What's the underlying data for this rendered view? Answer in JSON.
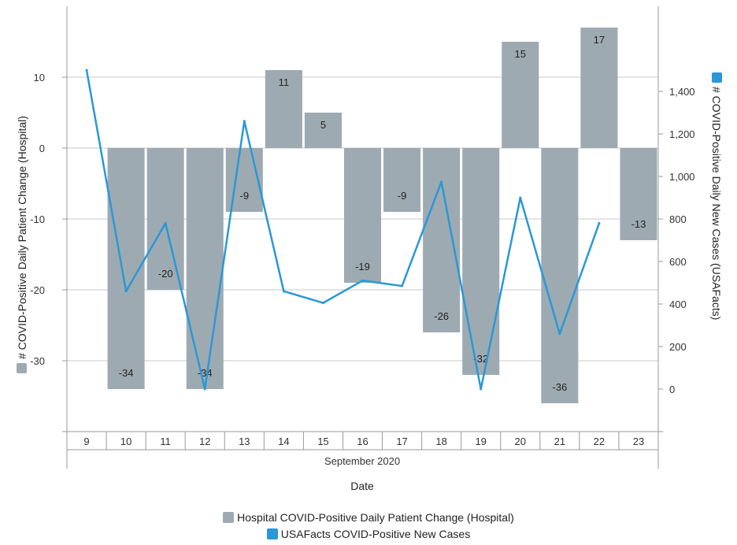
{
  "chart_data": {
    "type": "bar",
    "x": [
      "9",
      "10",
      "11",
      "12",
      "13",
      "14",
      "15",
      "16",
      "17",
      "18",
      "19",
      "20",
      "21",
      "22",
      "23"
    ],
    "group_label": "September 2020",
    "xlabel": "Date",
    "ylabel_left": "# COVID-Positive Daily Patient Change (Hospital)",
    "ylabel_right": "# COVID-Positive Daily New Cases (USAFacts)",
    "ylim_left": [
      -40,
      20
    ],
    "yticks_left": [
      10,
      0,
      -10,
      -20,
      -30
    ],
    "ylim_right": [
      -200,
      1800
    ],
    "yticks_right": [
      1400,
      1200,
      1000,
      800,
      600,
      400,
      200,
      0
    ],
    "yticks_right_labels": [
      "1,400",
      "1,200",
      "1,000",
      "800",
      "600",
      "400",
      "200",
      "0"
    ],
    "series": [
      {
        "name": "Hospital COVID-Positive Daily Patient Change (Hospital)",
        "type": "bar",
        "axis": "left",
        "color": "#9eaab2",
        "x": [
          "10",
          "11",
          "12",
          "13",
          "14",
          "15",
          "16",
          "17",
          "18",
          "19",
          "20",
          "21",
          "22",
          "23"
        ],
        "values": [
          -34,
          -20,
          -34,
          -9,
          11,
          5,
          -19,
          -9,
          -26,
          -32,
          15,
          -36,
          17,
          -13
        ]
      },
      {
        "name": "USAFacts COVID-Positive New Cases",
        "type": "line",
        "axis": "right",
        "color": "#2a98d6",
        "x": [
          "9",
          "10",
          "11",
          "12",
          "13",
          "14",
          "15",
          "16",
          "17",
          "18",
          "19",
          "20",
          "21",
          "22"
        ],
        "values": [
          1500,
          460,
          780,
          0,
          1260,
          460,
          405,
          510,
          485,
          975,
          0,
          900,
          260,
          780
        ]
      }
    ],
    "grid": true,
    "legend_position": "bottom-center"
  },
  "legend": [
    {
      "label": "Hospital COVID-Positive Daily Patient Change (Hospital)",
      "color": "#9eaab2"
    },
    {
      "label": "USAFacts COVID-Positive New Cases",
      "color": "#2a98d6"
    }
  ]
}
